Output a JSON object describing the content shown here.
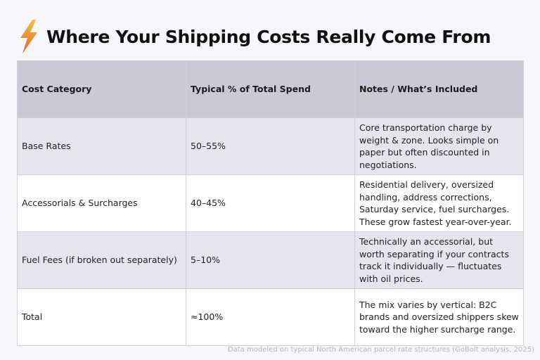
{
  "header": {
    "icon": "lightning-bolt-icon",
    "title": "Where Your Shipping Costs Really Come From"
  },
  "table": {
    "columns": [
      "Cost Category",
      "Typical % of Total Spend",
      "Notes / What’s Included"
    ],
    "rows": [
      {
        "category": "Base Rates",
        "percent": "50–55%",
        "notes": "Core transportation charge by weight & zone. Looks simple on paper but often discounted in negotiations."
      },
      {
        "category": "Accessorials & Surcharges",
        "percent": "40–45%",
        "notes": "Residential delivery, oversized handling, address corrections, Saturday service, fuel surcharges. These grow fastest year-over-year."
      },
      {
        "category": "Fuel Fees (if broken out separately)",
        "percent": "5–10%",
        "notes": "Technically an accessorial, but worth separating if your contracts track it individually — fluctuates with oil prices."
      },
      {
        "category": "Total",
        "percent": "≈100%",
        "notes": "The mix varies by vertical: B2C brands and oversized shippers skew toward the higher surcharge range."
      }
    ]
  },
  "footer": "Data modeled on typical North American parcel rate structures (GoBolt analysis, 2025)",
  "colors": {
    "header_row": "#cacad4",
    "shaded_row": "#e5e5ee",
    "bolt_top": "#f7b733",
    "bolt_bottom": "#e1662a"
  }
}
